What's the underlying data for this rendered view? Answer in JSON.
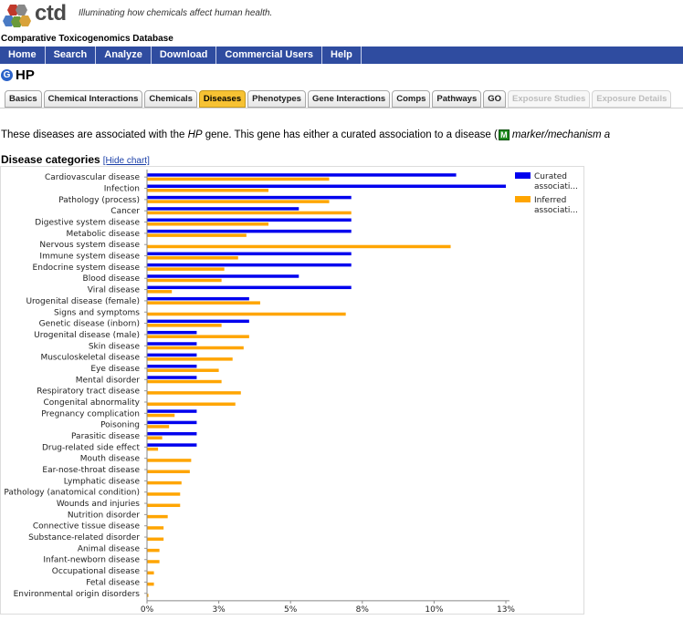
{
  "header": {
    "logo_text": "ctd",
    "tagline": "Illuminating how chemicals affect human health.",
    "db_name": "Comparative Toxicogenomics Database"
  },
  "nav": [
    "Home",
    "Search",
    "Analyze",
    "Download",
    "Commercial Users",
    "Help"
  ],
  "gene": {
    "icon": "gene-icon",
    "name": "HP"
  },
  "tabs": [
    {
      "label": "Basics",
      "state": "normal"
    },
    {
      "label": "Chemical Interactions",
      "state": "normal"
    },
    {
      "label": "Chemicals",
      "state": "normal"
    },
    {
      "label": "Diseases",
      "state": "active"
    },
    {
      "label": "Phenotypes",
      "state": "normal"
    },
    {
      "label": "Gene Interactions",
      "state": "normal"
    },
    {
      "label": "Comps",
      "state": "normal"
    },
    {
      "label": "Pathways",
      "state": "normal"
    },
    {
      "label": "GO",
      "state": "normal"
    },
    {
      "label": "Exposure Studies",
      "state": "disabled"
    },
    {
      "label": "Exposure Details",
      "state": "disabled"
    }
  ],
  "intro": {
    "before": "These diseases are associated with the",
    "gene": "HP",
    "after": "gene. This gene has either a curated association to a disease (",
    "marker_icon": "M",
    "marker_text": "marker/mechanism a"
  },
  "section": {
    "title": "Disease categories",
    "hide_link": "[Hide chart]"
  },
  "chart_data": {
    "type": "bar",
    "orientation": "horizontal",
    "categories": [
      "Cardiovascular disease",
      "Infection",
      "Pathology (process)",
      "Cancer",
      "Digestive system disease",
      "Metabolic disease",
      "Nervous system disease",
      "Immune system disease",
      "Endocrine system disease",
      "Blood disease",
      "Viral disease",
      "Urogenital disease (female)",
      "Signs and symptoms",
      "Genetic disease (inborn)",
      "Urogenital disease (male)",
      "Skin disease",
      "Musculoskeletal disease",
      "Eye disease",
      "Mental disorder",
      "Respiratory tract disease",
      "Congenital abnormality",
      "Pregnancy complication",
      "Poisoning",
      "Parasitic disease",
      "Drug-related side effect",
      "Mouth disease",
      "Ear-nose-throat disease",
      "Lymphatic disease",
      "Pathology (anatomical condition)",
      "Wounds and injuries",
      "Nutrition disorder",
      "Connective tissue disease",
      "Substance-related disorder",
      "Animal disease",
      "Infant-newborn disease",
      "Occupational disease",
      "Fetal disease",
      "Environmental origin disorders"
    ],
    "series": [
      {
        "name": "Curated associati...",
        "color": "#0000ee",
        "values": [
          11.2,
          13.0,
          7.4,
          5.5,
          7.4,
          7.4,
          0,
          7.4,
          7.4,
          5.5,
          7.4,
          3.7,
          0,
          3.7,
          1.8,
          1.8,
          1.8,
          1.8,
          1.8,
          0,
          0,
          1.8,
          1.8,
          1.8,
          1.8,
          0,
          0,
          0,
          0,
          0,
          0,
          0,
          0,
          0,
          0,
          0,
          0,
          0
        ]
      },
      {
        "name": "Inferred associati...",
        "color": "#ffa500",
        "values": [
          6.6,
          4.4,
          6.6,
          7.4,
          4.4,
          3.6,
          11.0,
          3.3,
          2.8,
          2.7,
          0.9,
          4.1,
          7.2,
          2.7,
          3.7,
          3.5,
          3.1,
          2.6,
          2.7,
          3.4,
          3.2,
          1.0,
          0.8,
          0.55,
          0.4,
          1.6,
          1.55,
          1.25,
          1.2,
          1.2,
          0.75,
          0.6,
          0.6,
          0.45,
          0.45,
          0.25,
          0.25,
          0.05
        ]
      }
    ],
    "x_ticks": [
      "0%",
      "3%",
      "5%",
      "8%",
      "10%",
      "13%"
    ],
    "x_tick_values": [
      0,
      2.6,
      5.2,
      7.8,
      10.4,
      13.0
    ],
    "xlim": [
      0,
      13.0
    ],
    "grid": false,
    "legend_position": "top-right"
  }
}
